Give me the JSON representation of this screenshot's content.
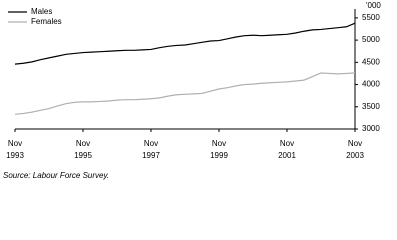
{
  "chart_data": {
    "type": "line",
    "y_axis_label": "'000",
    "x": [
      "Nov 1993",
      "Feb 1994",
      "May 1994",
      "Aug 1994",
      "Nov 1994",
      "Feb 1995",
      "May 1995",
      "Aug 1995",
      "Nov 1995",
      "Feb 1996",
      "May 1996",
      "Aug 1996",
      "Nov 1996",
      "Feb 1997",
      "May 1997",
      "Aug 1997",
      "Nov 1997",
      "Feb 1998",
      "May 1998",
      "Aug 1998",
      "Nov 1998",
      "Feb 1999",
      "May 1999",
      "Aug 1999",
      "Nov 1999",
      "Feb 2000",
      "May 2000",
      "Aug 2000",
      "Nov 2000",
      "Feb 2001",
      "May 2001",
      "Aug 2001",
      "Nov 2001",
      "Feb 2002",
      "May 2002",
      "Aug 2002",
      "Nov 2002",
      "Feb 2003",
      "May 2003",
      "Aug 2003",
      "Nov 2003"
    ],
    "xticks": [
      "Nov 1993",
      "Nov 1995",
      "Nov 1997",
      "Nov 1999",
      "Nov 2001",
      "Nov 2003"
    ],
    "series": [
      {
        "name": "Males",
        "color": "#000000",
        "values": [
          4460,
          4480,
          4510,
          4560,
          4600,
          4640,
          4680,
          4700,
          4720,
          4730,
          4740,
          4750,
          4760,
          4770,
          4770,
          4780,
          4790,
          4830,
          4860,
          4880,
          4890,
          4920,
          4950,
          4980,
          4990,
          5030,
          5070,
          5100,
          5110,
          5100,
          5110,
          5120,
          5130,
          5160,
          5200,
          5230,
          5240,
          5260,
          5280,
          5300,
          5380
        ]
      },
      {
        "name": "Females",
        "color": "#b0b0b0",
        "values": [
          3330,
          3350,
          3380,
          3420,
          3460,
          3520,
          3570,
          3600,
          3610,
          3610,
          3620,
          3630,
          3650,
          3660,
          3660,
          3670,
          3680,
          3700,
          3740,
          3770,
          3780,
          3790,
          3800,
          3850,
          3900,
          3930,
          3970,
          4000,
          4010,
          4030,
          4040,
          4050,
          4060,
          4080,
          4100,
          4180,
          4260,
          4250,
          4240,
          4250,
          4260
        ]
      }
    ],
    "ylim": [
      3000,
      5700
    ],
    "yticks": [
      3000,
      3500,
      4000,
      4500,
      5000,
      5500
    ],
    "grid": false,
    "legend": "top-left",
    "source": "Source: Labour Force Survey."
  }
}
